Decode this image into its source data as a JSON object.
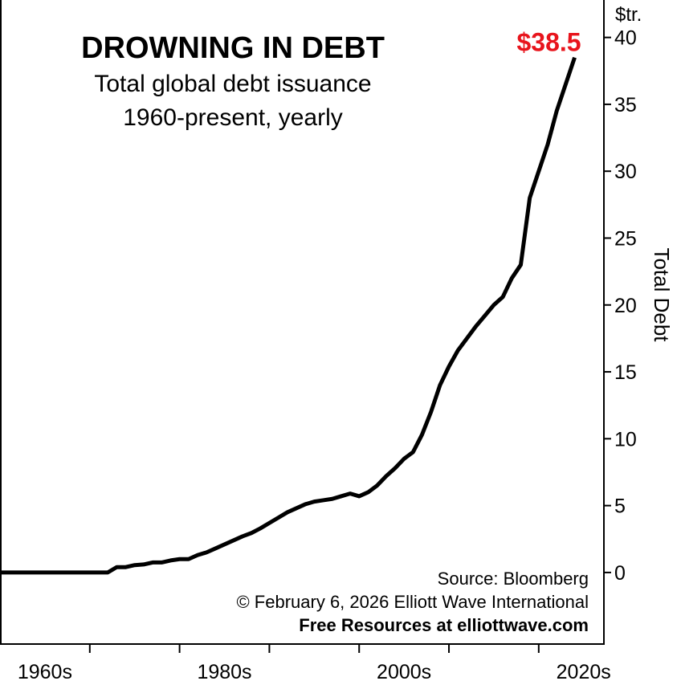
{
  "chart_data": {
    "type": "line",
    "title": "DROWNING IN DEBT",
    "subtitle": [
      "Total global debt issuance",
      "1960-present, yearly"
    ],
    "y_unit": "$tr.",
    "y_label": "Total Debt",
    "end_label": "$38.5",
    "end_label_color": "#e8141c",
    "source": [
      "Source: Bloomberg",
      "© February 6, 2026 Elliott Wave International",
      "Free Resources at elliottwave.com"
    ],
    "series": [
      {
        "name": "Total global debt",
        "color": "#000000",
        "x": [
          1960,
          1961,
          1962,
          1963,
          1964,
          1965,
          1966,
          1967,
          1968,
          1969,
          1970,
          1971,
          1972,
          1973,
          1974,
          1975,
          1976,
          1977,
          1978,
          1979,
          1980,
          1981,
          1982,
          1983,
          1984,
          1985,
          1986,
          1987,
          1988,
          1989,
          1990,
          1991,
          1992,
          1993,
          1994,
          1995,
          1996,
          1997,
          1998,
          1999,
          2000,
          2001,
          2002,
          2003,
          2004,
          2005,
          2006,
          2007,
          2008,
          2009,
          2010,
          2011,
          2012,
          2013,
          2014,
          2015,
          2016,
          2017,
          2018,
          2019,
          2020,
          2021,
          2022,
          2023,
          2024
        ],
        "values": [
          0,
          0,
          0,
          0,
          0,
          0,
          0,
          0,
          0,
          0,
          0,
          0,
          0,
          0.4,
          0.4,
          0.55,
          0.6,
          0.75,
          0.75,
          0.9,
          1.0,
          1.0,
          1.3,
          1.5,
          1.8,
          2.1,
          2.4,
          2.7,
          2.95,
          3.3,
          3.7,
          4.1,
          4.5,
          4.8,
          5.1,
          5.3,
          5.4,
          5.5,
          5.7,
          5.9,
          5.7,
          6.0,
          6.5,
          7.2,
          7.8,
          8.5,
          9.0,
          10.3,
          12.0,
          14.0,
          15.4,
          16.6,
          17.5,
          18.4,
          19.2,
          20.0,
          20.6,
          22.0,
          23.0,
          28.0,
          30.0,
          32.0,
          34.5,
          36.5,
          38.5
        ]
      }
    ],
    "xlim": [
      1960,
      2027.26
    ],
    "xticks": [
      {
        "value": 1965,
        "label": "1960s"
      },
      {
        "value": 1985,
        "label": "1980s"
      },
      {
        "value": 2005,
        "label": "2000s"
      },
      {
        "value": 2025,
        "label": "2020s"
      }
    ],
    "x_tick_marks": [
      1970,
      1980,
      1990,
      2000,
      2010,
      2020
    ],
    "ylim": [
      -5.35,
      42.8
    ],
    "yticks": [
      0,
      5,
      10,
      15,
      20,
      25,
      30,
      35,
      40
    ]
  }
}
